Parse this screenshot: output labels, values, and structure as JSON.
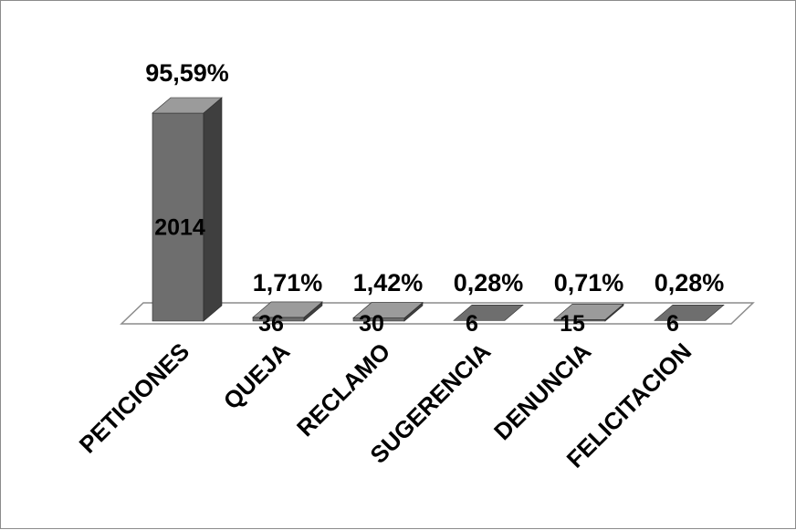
{
  "chart_data": {
    "type": "bar",
    "style": "3d-column",
    "categories": [
      "PETICIONES",
      "QUEJA",
      "RECLAMO",
      "SUGERENCIA",
      "DENUNCIA",
      "FELICITACION"
    ],
    "values": [
      2014,
      36,
      30,
      6,
      15,
      6
    ],
    "percent_labels": [
      "95,59%",
      "1,71%",
      "1,42%",
      "0,28%",
      "0,71%",
      "0,28%"
    ],
    "title": "",
    "xlabel": "",
    "ylabel": "",
    "ylim": [
      0,
      2014
    ],
    "grid": false,
    "legend": "none",
    "colors": {
      "bar_front": "#6e6e6e",
      "bar_side": "#3f3f3f",
      "bar_top": "#9b9b9b",
      "floor_fill": "#ffffff",
      "floor_stroke": "#8c8c8c",
      "frame": "#8c8c8c"
    }
  }
}
